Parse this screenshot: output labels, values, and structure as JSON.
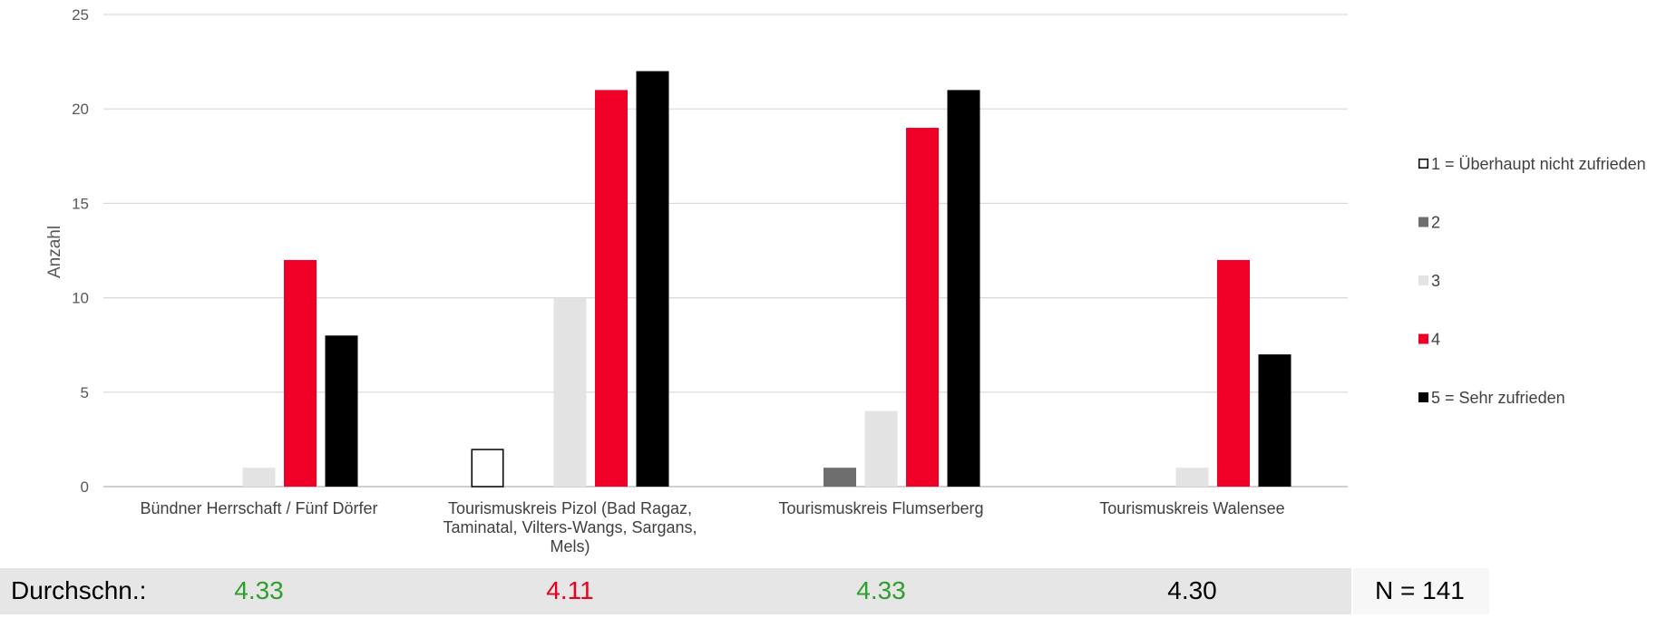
{
  "chart_data": {
    "type": "bar",
    "ylabel": "Anzahl",
    "ylim": [
      0,
      25
    ],
    "yticks": [
      0,
      5,
      10,
      15,
      20,
      25
    ],
    "grid": true,
    "legend_position": "right",
    "categories": [
      [
        "Bündner Herrschaft / Fünf Dörfer"
      ],
      [
        "Tourismuskreis Pizol (Bad Ragaz,",
        "Taminatal, Vilters-Wangs, Sargans,",
        "Mels)"
      ],
      [
        "Tourismuskreis Flumserberg"
      ],
      [
        "Tourismuskreis Walensee"
      ]
    ],
    "series": [
      {
        "name": "1 = Überhaupt nicht zufrieden",
        "values": [
          0,
          2,
          0,
          0
        ],
        "color": "#ffffff",
        "stroke": "#000000"
      },
      {
        "name": "2",
        "values": [
          0,
          0,
          1,
          0
        ],
        "color": "#6e6e6e",
        "stroke": "none"
      },
      {
        "name": "3",
        "values": [
          1,
          10,
          4,
          1
        ],
        "color": "#e3e3e3",
        "stroke": "none"
      },
      {
        "name": "4",
        "values": [
          12,
          21,
          19,
          12
        ],
        "color": "#f00026",
        "stroke": "none"
      },
      {
        "name": "5 = Sehr zufrieden",
        "values": [
          8,
          22,
          21,
          7
        ],
        "color": "#000000",
        "stroke": "none"
      }
    ]
  },
  "footer": {
    "label": "Durchschn.:",
    "averages": [
      {
        "value": "4.33",
        "color": "#2e9e2e"
      },
      {
        "value": "4.11",
        "color": "#e8001c"
      },
      {
        "value": "4.33",
        "color": "#2e9e2e"
      },
      {
        "value": "4.30",
        "color": "#000000"
      }
    ],
    "n_label": "N = 141"
  }
}
